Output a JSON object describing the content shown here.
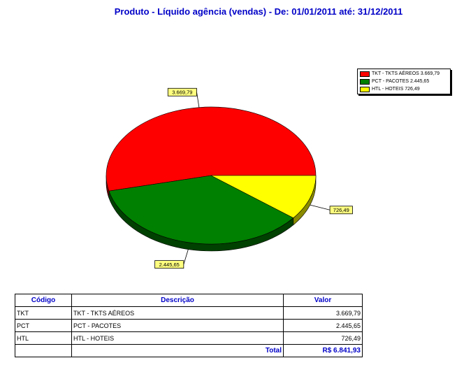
{
  "title": "Produto - Líquido agência (vendas) - De: 01/01/2011 até: 31/12/2011",
  "chart_data": {
    "type": "pie",
    "categories": [
      "TKT - TKTS AÉREOS",
      "PCT - PACOTES",
      "HTL - HOTEIS"
    ],
    "values": [
      3669.79,
      2445.65,
      726.49
    ],
    "data_labels": [
      "3.669,79",
      "2.445,65",
      "726,49"
    ],
    "colors": [
      "#ff0000",
      "#008000",
      "#ffff00"
    ],
    "side_colors": [
      "#7a0000",
      "#004000",
      "#8a8a00"
    ],
    "legend": {
      "placement": "top-right",
      "entries": [
        "TKT - TKTS AÉREOS 3.669,79",
        "PCT - PACOTES 2.445,65",
        "HTL - HOTEIS 726,49"
      ]
    },
    "is_3d": true
  },
  "table": {
    "headers": [
      "Código",
      "Descrição",
      "Valor"
    ],
    "rows": [
      {
        "code": "TKT",
        "desc": "TKT - TKTS AÉREOS",
        "value": "3.669,79"
      },
      {
        "code": "PCT",
        "desc": "PCT - PACOTES",
        "value": "2.445,65"
      },
      {
        "code": "HTL",
        "desc": "HTL - HOTEIS",
        "value": "726,49"
      }
    ],
    "total_label": "Total",
    "total_value": "R$ 6.841,93"
  }
}
